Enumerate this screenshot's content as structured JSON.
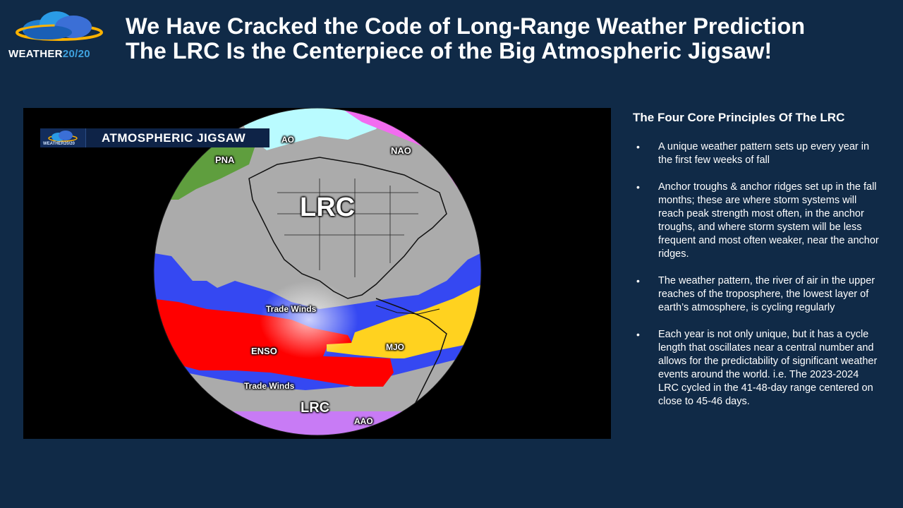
{
  "logo": {
    "word": "WEATHER",
    "number": "20/20"
  },
  "title": {
    "line1": "We Have Cracked the Code of Long-Range Weather Prediction",
    "line2": "The LRC Is the Centerpiece of the Big Atmospheric Jigsaw!"
  },
  "image": {
    "banner_logo_text": "WEATHER20/20",
    "banner_title": "ATMOSPHERIC JIGSAW",
    "labels": {
      "ao": "AO",
      "nao": "NAO",
      "pna": "PNA",
      "lrc_top": "LRC",
      "trade_winds_top": "Trade Winds",
      "enso": "ENSO",
      "mjo": "MJO",
      "trade_winds_bottom": "Trade Winds",
      "lrc_bottom": "LRC",
      "aao": "AAO"
    },
    "colors": {
      "ao": "#b9fbff",
      "nao": "#f26cf0",
      "pna": "#5f9e3e",
      "lrc": "#ababab",
      "trade_winds": "#3548f2",
      "enso": "#ff0000",
      "mjo": "#ffd21f",
      "aao": "#c87bf5"
    }
  },
  "principles": {
    "heading": "The Four Core Principles Of The LRC",
    "bullet": "•",
    "items": [
      "A unique weather pattern sets up every year in the first few weeks of fall",
      "Anchor troughs & anchor ridges set up in the fall months; these are where storm systems will reach peak strength most often, in the anchor troughs, and where storm system will be less frequent and most often weaker, near the anchor ridges.",
      "The weather pattern, the river of air in the upper reaches of the troposphere, the lowest layer of earth’s atmosphere, is cycling regularly",
      "Each year is not only unique, but it has a cycle length that oscillates near a central number and allows for the predictability of significant weather events around the world.  i.e.  The 2023-2024 LRC cycled in the 41-48-day range centered on close to 45-46 days."
    ]
  }
}
